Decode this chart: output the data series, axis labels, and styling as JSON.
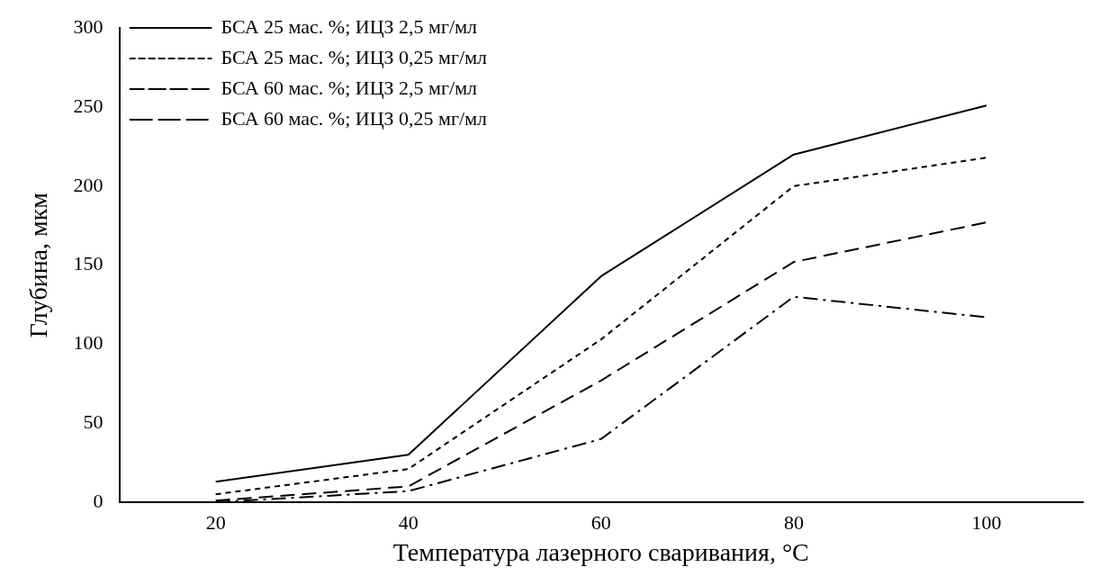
{
  "chart_data": {
    "type": "line",
    "xlabel": "Температура лазерного сваривания, °C",
    "ylabel": "Глубина, мкм",
    "categories": [
      "20",
      "40",
      "60",
      "80",
      "100"
    ],
    "series": [
      {
        "name": "БСА 25 мас. %; ИЦЗ 2,5 мг/мл",
        "color": "#000000",
        "line_style": "solid",
        "values": [
          13,
          30,
          143,
          220,
          251
        ]
      },
      {
        "name": "БСА 25 мас. %; ИЦЗ 0,25 мг/мл",
        "color": "#000000",
        "line_style": "dotted",
        "values": [
          5,
          21,
          103,
          200,
          218
        ]
      },
      {
        "name": "БСА 60 мас. %; ИЦЗ 2,5 мг/мл",
        "color": "#000000",
        "line_style": "dashed",
        "values": [
          1,
          10,
          77,
          152,
          177
        ]
      },
      {
        "name": "БСА 60 мас. %; ИЦЗ 0,25 мг/мл",
        "color": "#000000",
        "line_style": "dashdot",
        "values": [
          0,
          7,
          40,
          130,
          117
        ]
      }
    ],
    "ylim": [
      0,
      300
    ],
    "yticks": [
      0,
      50,
      100,
      150,
      200,
      250,
      300
    ],
    "grid": false,
    "legend": "top left",
    "marker": "none"
  }
}
